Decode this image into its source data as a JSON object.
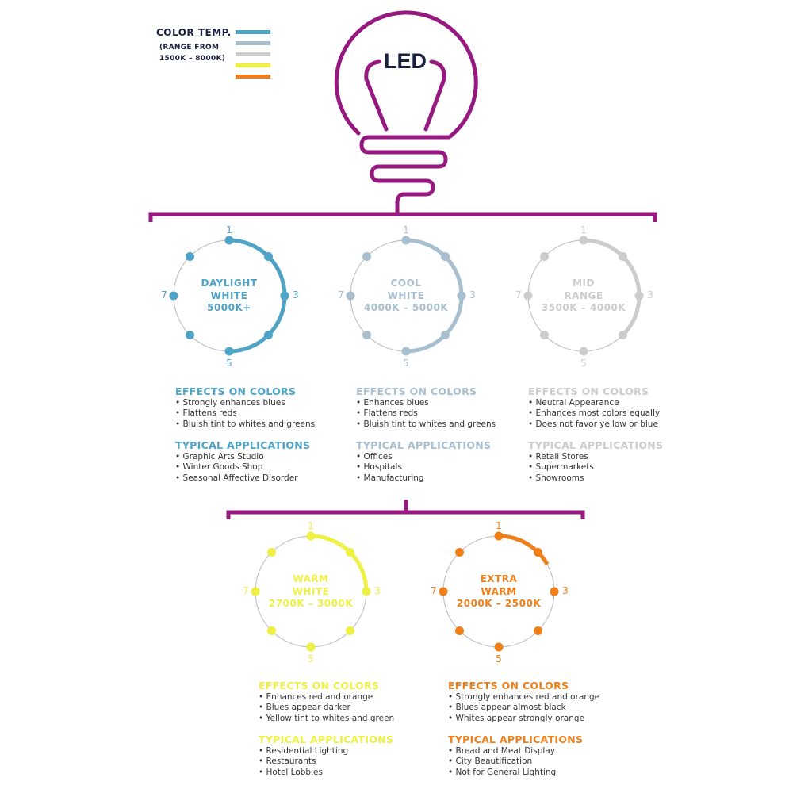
{
  "legend": {
    "title": "COLOR TEMP.",
    "subtitle_line1": "(RANGE FROM",
    "subtitle_line2": "1500K – 8000K)",
    "swatches": [
      "#4fa3c7",
      "#a8bfd0",
      "#cdcbcb",
      "#eef044",
      "#ef7f1a"
    ]
  },
  "bulb": {
    "label": "LED",
    "color": "#97197f",
    "label_color": "#1a2140"
  },
  "dial_numbers": [
    "1",
    "3",
    "5",
    "7"
  ],
  "types": [
    {
      "name_line1": "DAYLIGHT",
      "name_line2": "WHITE",
      "range": "5000K+",
      "color": "#4fa3c7",
      "arc_positions": 4,
      "effects_heading": "EFFECTS ON COLORS",
      "effects": [
        "Strongly enhances blues",
        "Flattens reds",
        "Bluish tint to whites and greens"
      ],
      "applications_heading": "TYPICAL APPLICATIONS",
      "applications": [
        "Graphic Arts Studio",
        "Winter Goods Shop",
        "Seasonal Affective Disorder"
      ]
    },
    {
      "name_line1": "COOL",
      "name_line2": "WHITE",
      "range": "4000K – 5000K",
      "color": "#a8bfd0",
      "arc_positions": 4,
      "effects_heading": "EFFECTS ON COLORS",
      "effects": [
        "Enhances blues",
        "Flattens reds",
        "Bluish tint to whites and greens"
      ],
      "applications_heading": "TYPICAL APPLICATIONS",
      "applications": [
        "Offices",
        "Hospitals",
        "Manufacturing"
      ]
    },
    {
      "name_line1": "MID",
      "name_line2": "RANGE",
      "range": "3500K – 4000K",
      "color": "#cdcbcb",
      "arc_positions": 3,
      "effects_heading": "EFFECTS ON COLORS",
      "effects": [
        "Neutral Appearance",
        "Enhances most colors equally",
        "Does not favor yellow or blue"
      ],
      "applications_heading": "TYPICAL APPLICATIONS",
      "applications": [
        "Retail Stores",
        "Supermarkets",
        "Showrooms"
      ]
    },
    {
      "name_line1": "WARM",
      "name_line2": "WHITE",
      "range": "2700K – 3000K",
      "color": "#eef044",
      "arc_positions": 2,
      "effects_heading": "EFFECTS ON COLORS",
      "effects": [
        "Enhances red and orange",
        "Blues appear darker",
        "Yellow tint to whites and green"
      ],
      "applications_heading": "TYPICAL APPLICATIONS",
      "applications": [
        "Residential Lighting",
        "Restaurants",
        "Hotel Lobbies"
      ]
    },
    {
      "name_line1": "EXTRA",
      "name_line2": "WARM",
      "range": "2000K – 2500K",
      "color": "#ef7f1a",
      "arc_positions": 1.35,
      "effects_heading": "EFFECTS ON COLORS",
      "effects": [
        "Strongly enhances red and orange",
        "Blues appear almost black",
        "Whites appear strongly orange"
      ],
      "applications_heading": "TYPICAL APPLICATIONS",
      "applications": [
        "Bread and Meat Display",
        "City Beautification",
        "Not for General Lighting"
      ]
    }
  ]
}
